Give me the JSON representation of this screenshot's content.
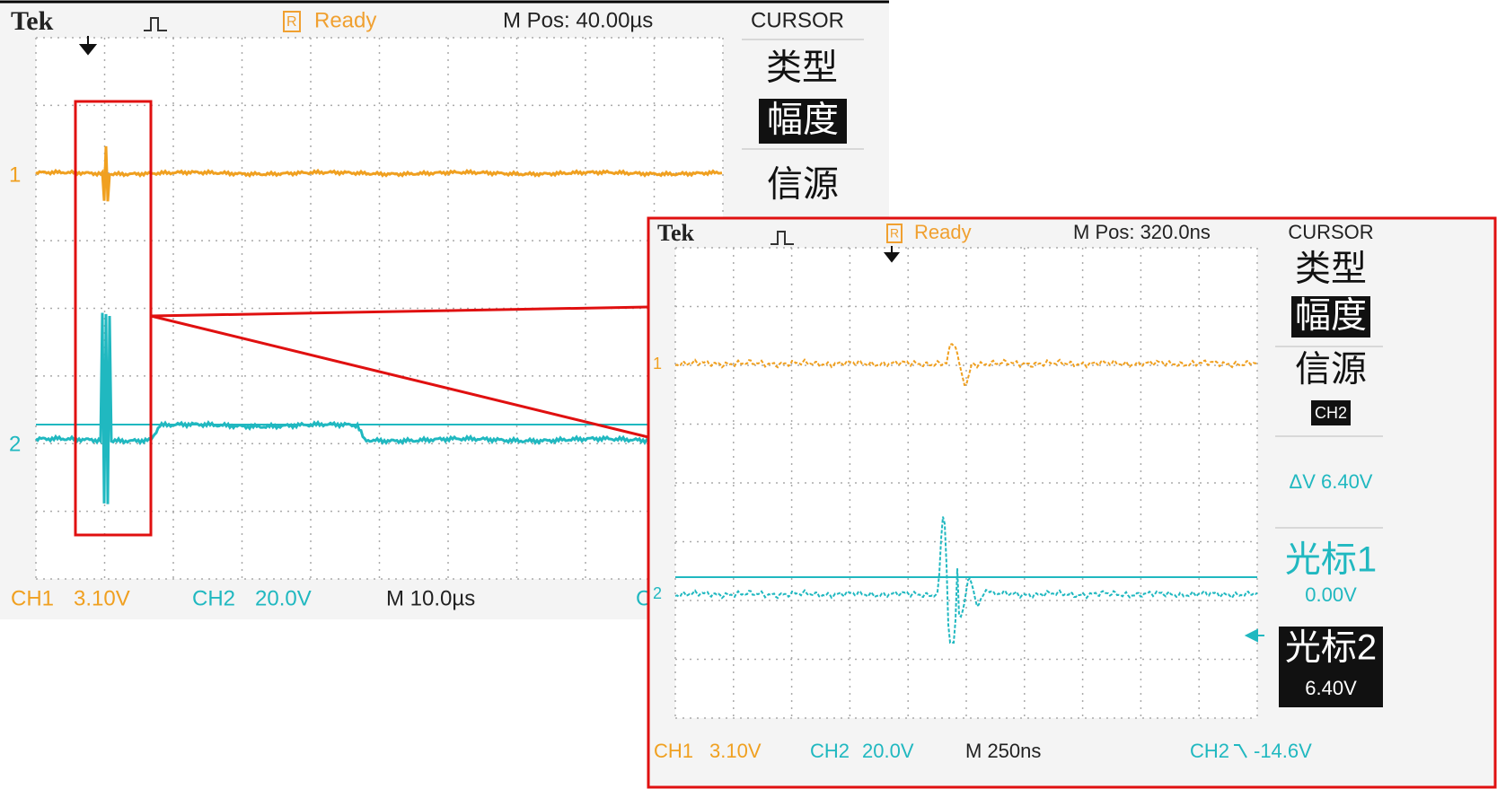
{
  "left_scope": {
    "header": {
      "brand": "Tek",
      "status_icon": "R",
      "status": "Ready",
      "m_pos": "M Pos: 40.00µs"
    },
    "menu": {
      "title": "CURSOR",
      "type_label": "类型",
      "type_value": "幅度",
      "source_label": "信源"
    },
    "channel_markers": [
      "1",
      "2"
    ],
    "footer": {
      "ch1": "CH1",
      "ch1_scale": "3.10V",
      "ch2": "CH2",
      "ch2_scale": "20.0V",
      "time_scale": "M 10.0µs",
      "cut": "C"
    }
  },
  "right_scope": {
    "header": {
      "brand": "Tek",
      "status_icon": "R",
      "status": "Ready",
      "m_pos": "M Pos: 320.0ns"
    },
    "menu": {
      "title": "CURSOR",
      "type_label": "类型",
      "type_value": "幅度",
      "source_label": "信源",
      "source_value": "CH2",
      "delta": "ΔV 6.40V",
      "cursor1": "光标1",
      "cursor1_value": "0.00V",
      "cursor2": "光标2",
      "cursor2_value": "6.40V"
    },
    "channel_markers": [
      "1",
      "2"
    ],
    "footer": {
      "ch1": "CH1",
      "ch1_scale": "3.10V",
      "ch2": "CH2",
      "ch2_scale": "20.0V",
      "time_scale": "M 250ns",
      "trigger_source": "CH2",
      "trigger_level": "-14.6V"
    }
  }
}
